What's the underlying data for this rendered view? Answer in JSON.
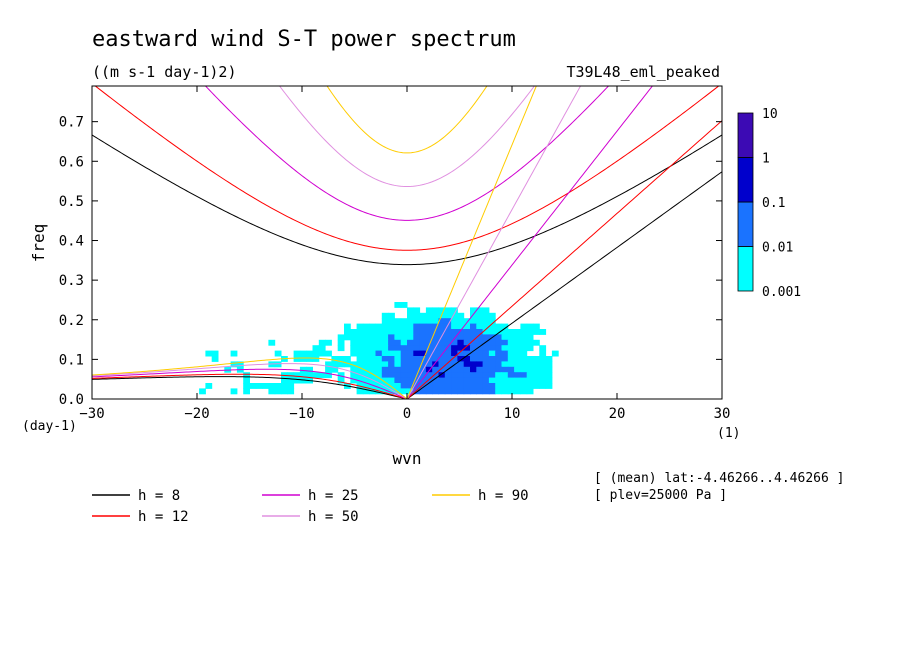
{
  "chart_data": {
    "type": "heatmap",
    "title": "eastward wind S-T power spectrum",
    "units": "((m s-1 day-1)2)",
    "run_label": "T39L48_eml_peaked",
    "xlabel": "wvn",
    "ylabel": "freq",
    "x_unit": "(1)",
    "y_unit": "(day-1)",
    "xlim": [
      -30,
      30
    ],
    "ylim": [
      0,
      0.79
    ],
    "xticks": [
      "-30",
      "-20",
      "-10",
      "0",
      "10",
      "20",
      "30"
    ],
    "yticks": [
      "0.0",
      "0.1",
      "0.2",
      "0.3",
      "0.4",
      "0.5",
      "0.6",
      "0.7"
    ],
    "colorbar": {
      "labels": [
        "0.001",
        "0.01",
        "0.1",
        "1",
        "10"
      ],
      "colors": [
        "#00ffff",
        "#1a73ff",
        "#0000cc",
        "#3c0ab4"
      ]
    },
    "notes": [
      "[ (mean) lat:-4.46266..4.46266 ]",
      "[ plev=25000 Pa ]"
    ],
    "series": [
      {
        "name": "h =  8",
        "color": "#000000"
      },
      {
        "name": "h = 12",
        "color": "#ff0000"
      },
      {
        "name": "h = 25",
        "color": "#d000d0"
      },
      {
        "name": "h = 50",
        "color": "#e090e0"
      },
      {
        "name": "h = 90",
        "color": "#ffcc00"
      }
    ],
    "grid": false,
    "legend_position": "bottom"
  }
}
